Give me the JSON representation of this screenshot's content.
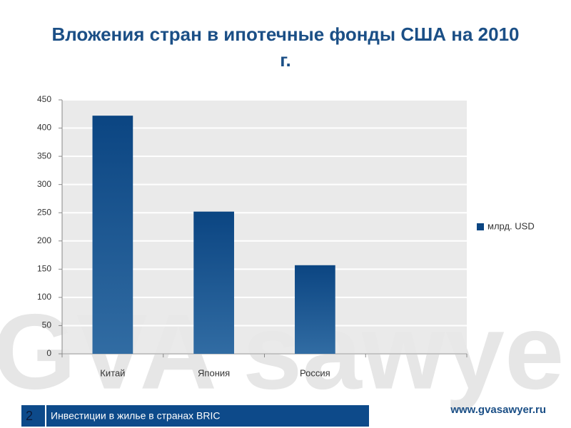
{
  "chart_data": {
    "type": "bar",
    "title": "Вложения стран в ипотечные фонды США на 2010 г.",
    "categories": [
      "Китай",
      "Япония",
      "Россия",
      null
    ],
    "series": [
      {
        "name": "млрд. USD",
        "color": "#0b4582",
        "values": [
          422,
          252,
          157,
          null
        ]
      }
    ],
    "ylim": [
      0,
      450
    ],
    "yticks": [
      0,
      50,
      100,
      150,
      200,
      250,
      300,
      350,
      400,
      450
    ],
    "grid": true,
    "legend": "right"
  },
  "slide": {
    "number": "2",
    "footer": "Инвестиции в жилье в странах BRIC",
    "url": "www.gvasawyer.ru",
    "watermark": "GVA sawyer"
  }
}
